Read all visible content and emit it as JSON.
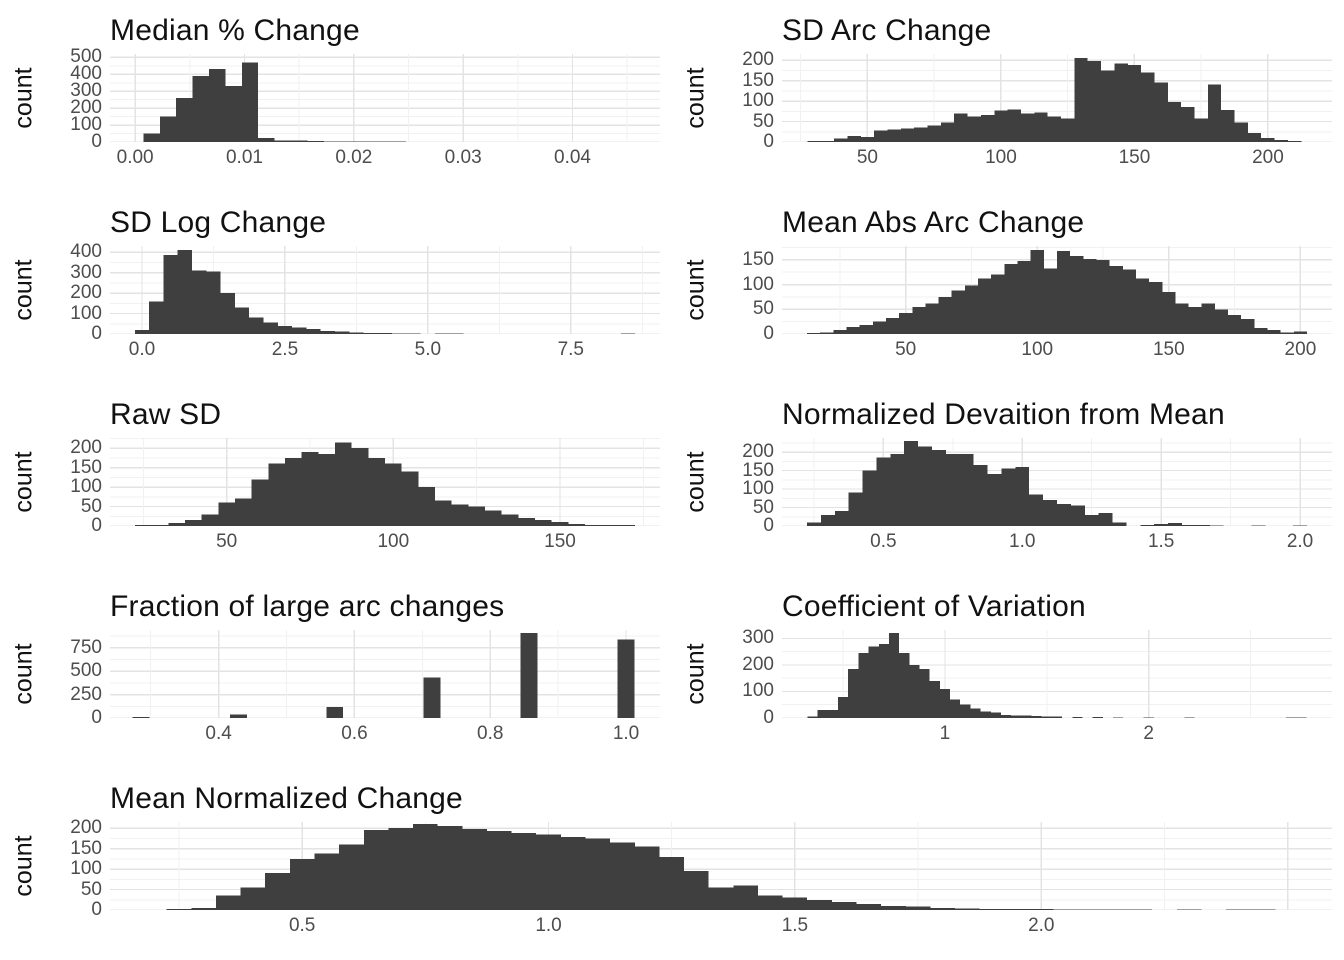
{
  "figure": {
    "ylabel": "count",
    "colors": {
      "bar": "#3F3F3F",
      "grid_major": "#E3E3E3",
      "grid_minor": "#F1F1F1",
      "axis_text": "#4D4D4D",
      "title": "#111111",
      "background": "#FFFFFF"
    }
  },
  "chart_data": [
    {
      "type": "bar",
      "title": "Median % Change",
      "ylabel": "count",
      "xlim": [
        -0.0023,
        0.048
      ],
      "ylim": [
        0,
        520
      ],
      "yticks": [
        0,
        100,
        200,
        300,
        400,
        500
      ],
      "ytick_labels": [
        "0",
        "100",
        "200",
        "300",
        "400",
        "500"
      ],
      "xticks": [
        0.0,
        0.01,
        0.02,
        0.03,
        0.04
      ],
      "xtick_labels": [
        "0.00",
        "0.01",
        "0.02",
        "0.03",
        "0.04"
      ],
      "bin_start": 0.00075,
      "bin_width": 0.0015,
      "counts": [
        50,
        150,
        260,
        390,
        430,
        330,
        470,
        25,
        10,
        8,
        6,
        4,
        3,
        2,
        2,
        2,
        1,
        1,
        1,
        0,
        1,
        0,
        0,
        1,
        0,
        0,
        1,
        0,
        0,
        1
      ]
    },
    {
      "type": "bar",
      "title": "SD Arc Change",
      "ylabel": "count",
      "xlim": [
        18,
        224
      ],
      "ylim": [
        0,
        215
      ],
      "yticks": [
        0,
        50,
        100,
        150,
        200
      ],
      "ytick_labels": [
        "0",
        "50",
        "100",
        "150",
        "200"
      ],
      "xticks": [
        50,
        100,
        150,
        200
      ],
      "xtick_labels": [
        "50",
        "100",
        "150",
        "200"
      ],
      "bin_start": 27.5,
      "bin_width": 5,
      "counts": [
        2,
        3,
        8,
        15,
        12,
        28,
        30,
        33,
        35,
        40,
        48,
        70,
        62,
        66,
        77,
        80,
        70,
        72,
        62,
        58,
        205,
        198,
        175,
        192,
        188,
        170,
        145,
        98,
        86,
        58,
        140,
        78,
        48,
        22,
        10,
        5,
        2
      ]
    },
    {
      "type": "bar",
      "title": "SD Log Change",
      "ylabel": "count",
      "xlim": [
        -0.56,
        9.06
      ],
      "ylim": [
        0,
        430
      ],
      "yticks": [
        0,
        100,
        200,
        300,
        400
      ],
      "ytick_labels": [
        "0",
        "100",
        "200",
        "300",
        "400"
      ],
      "xticks": [
        0.0,
        2.5,
        5.0,
        7.5
      ],
      "xtick_labels": [
        "0.0",
        "2.5",
        "5.0",
        "7.5"
      ],
      "bin_start": -0.125,
      "bin_width": 0.25,
      "counts": [
        20,
        160,
        385,
        410,
        310,
        305,
        200,
        130,
        80,
        55,
        40,
        32,
        25,
        15,
        12,
        8,
        5,
        4,
        3,
        3,
        0,
        2,
        2,
        0,
        0,
        0,
        0,
        0,
        0,
        0,
        0,
        0,
        0,
        0,
        2
      ]
    },
    {
      "type": "bar",
      "title": "Mean Abs Arc Change",
      "ylabel": "count",
      "xlim": [
        3,
        212
      ],
      "ylim": [
        0,
        178
      ],
      "yticks": [
        0,
        50,
        100,
        150
      ],
      "ytick_labels": [
        "0",
        "50",
        "100",
        "150"
      ],
      "xticks": [
        50,
        100,
        150,
        200
      ],
      "xtick_labels": [
        "50",
        "100",
        "150",
        "200"
      ],
      "bin_start": 12.5,
      "bin_width": 5,
      "counts": [
        2,
        3,
        8,
        14,
        18,
        25,
        32,
        42,
        55,
        62,
        75,
        88,
        98,
        112,
        120,
        142,
        148,
        170,
        132,
        168,
        158,
        152,
        150,
        138,
        130,
        112,
        105,
        85,
        62,
        55,
        62,
        50,
        38,
        30,
        12,
        8,
        3,
        5
      ]
    },
    {
      "type": "bar",
      "title": "Raw SD",
      "ylabel": "count",
      "xlim": [
        15,
        180
      ],
      "ylim": [
        0,
        226
      ],
      "yticks": [
        0,
        50,
        100,
        150,
        200
      ],
      "ytick_labels": [
        "0",
        "50",
        "100",
        "150",
        "200"
      ],
      "xticks": [
        50,
        100,
        150
      ],
      "xtick_labels": [
        "50",
        "100",
        "150"
      ],
      "bin_start": 22.5,
      "bin_width": 5,
      "counts": [
        2,
        3,
        8,
        15,
        30,
        60,
        70,
        120,
        160,
        175,
        190,
        185,
        215,
        200,
        175,
        160,
        140,
        100,
        65,
        55,
        50,
        40,
        30,
        20,
        15,
        10,
        5,
        3,
        2,
        2
      ]
    },
    {
      "type": "bar",
      "title": "Normalized Devaition from Mean",
      "ylabel": "count",
      "xlim": [
        0.135,
        2.115
      ],
      "ylim": [
        0,
        238
      ],
      "yticks": [
        0,
        50,
        100,
        150,
        200
      ],
      "ytick_labels": [
        "0",
        "50",
        "100",
        "150",
        "200"
      ],
      "xticks": [
        0.5,
        1.0,
        1.5,
        2.0
      ],
      "xtick_labels": [
        "0.5",
        "1.0",
        "1.5",
        "2.0"
      ],
      "bin_start": 0.225,
      "bin_width": 0.05,
      "counts": [
        10,
        30,
        40,
        90,
        150,
        185,
        195,
        230,
        215,
        205,
        195,
        195,
        165,
        140,
        155,
        160,
        85,
        70,
        60,
        55,
        30,
        35,
        10,
        0,
        3,
        5,
        8,
        3,
        3,
        2,
        0,
        0,
        1,
        0,
        0,
        1
      ]
    },
    {
      "type": "bar",
      "title": "Fraction of large arc changes",
      "ylabel": "count",
      "xlim": [
        0.24,
        1.05
      ],
      "ylim": [
        0,
        940
      ],
      "yticks": [
        0,
        250,
        500,
        750
      ],
      "ytick_labels": [
        "0",
        "250",
        "500",
        "750"
      ],
      "xticks": [
        0.4,
        0.6,
        0.8,
        1.0
      ],
      "xtick_labels": [
        "0.4",
        "0.6",
        "0.8",
        "1.0"
      ],
      "bar_width": 0.025,
      "bars": [
        {
          "x": 0.286,
          "v": 10
        },
        {
          "x": 0.429,
          "v": 40
        },
        {
          "x": 0.571,
          "v": 115
        },
        {
          "x": 0.714,
          "v": 435
        },
        {
          "x": 0.857,
          "v": 910
        },
        {
          "x": 1.0,
          "v": 840
        }
      ]
    },
    {
      "type": "bar",
      "title": "Coefficient of Variation",
      "ylabel": "count",
      "xlim": [
        0.2,
        2.9
      ],
      "ylim": [
        0,
        332
      ],
      "yticks": [
        0,
        100,
        200,
        300
      ],
      "ytick_labels": [
        "0",
        "100",
        "200",
        "300"
      ],
      "xticks": [
        1,
        2
      ],
      "xtick_labels": [
        "1",
        "2"
      ],
      "bin_start": 0.325,
      "bin_width": 0.05,
      "counts": [
        5,
        30,
        30,
        80,
        185,
        245,
        270,
        280,
        320,
        245,
        200,
        185,
        140,
        110,
        70,
        50,
        35,
        25,
        20,
        12,
        10,
        10,
        8,
        6,
        5,
        0,
        4,
        0,
        3,
        0,
        2,
        0,
        0,
        2,
        0,
        0,
        0,
        1,
        0,
        0,
        0,
        0,
        0,
        0,
        0,
        0,
        0,
        1,
        1
      ]
    },
    {
      "type": "bar",
      "title": "Mean Normalized Change",
      "ylabel": "count",
      "xlim": [
        0.11,
        2.59
      ],
      "ylim": [
        0,
        215
      ],
      "yticks": [
        0,
        50,
        100,
        150,
        200
      ],
      "ytick_labels": [
        "0",
        "50",
        "100",
        "150",
        "200"
      ],
      "xticks": [
        0.5,
        1.0,
        1.5,
        2.0
      ],
      "xtick_labels": [
        "0.5",
        "1.0",
        "1.5",
        "2.0"
      ],
      "bin_start": 0.225,
      "bin_width": 0.05,
      "counts": [
        2,
        5,
        35,
        55,
        90,
        125,
        138,
        160,
        195,
        200,
        210,
        205,
        198,
        193,
        188,
        185,
        178,
        175,
        165,
        155,
        130,
        95,
        55,
        60,
        35,
        30,
        25,
        20,
        15,
        10,
        8,
        5,
        4,
        3,
        2,
        2,
        1,
        1,
        1,
        1,
        0,
        1,
        0,
        1,
        1
      ]
    }
  ]
}
